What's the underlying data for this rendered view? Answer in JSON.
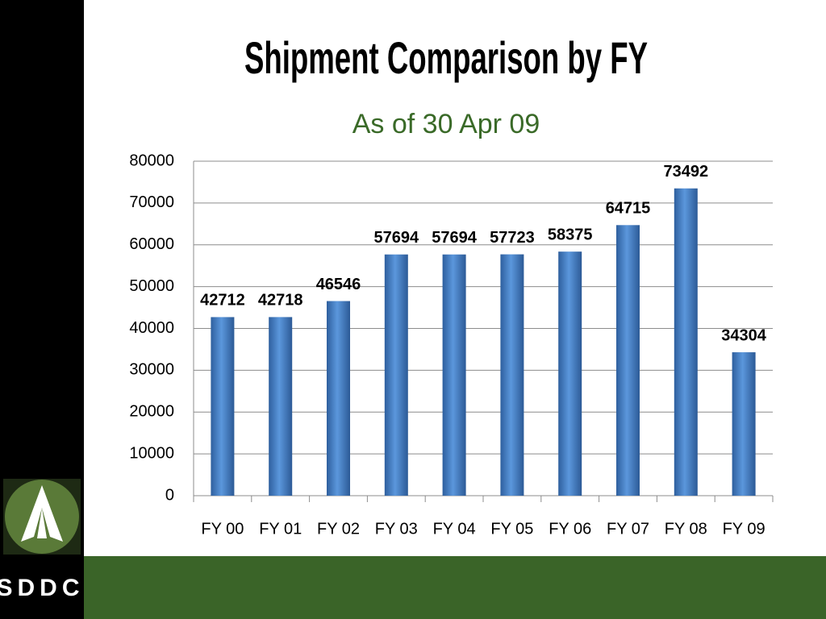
{
  "chart_data": {
    "type": "bar",
    "title": "Shipment Comparison by FY",
    "subtitle": "As of 30 Apr 09",
    "categories": [
      "FY 00",
      "FY 01",
      "FY 02",
      "FY 03",
      "FY 04",
      "FY 05",
      "FY 06",
      "FY 07",
      "FY 08",
      "FY 09"
    ],
    "values": [
      42712,
      42718,
      46546,
      57694,
      57694,
      57723,
      58375,
      64715,
      73492,
      34304
    ],
    "color": "#4a86d0",
    "ylim": [
      0,
      80000
    ],
    "yticks": [
      0,
      10000,
      20000,
      30000,
      40000,
      50000,
      60000,
      70000,
      80000
    ],
    "grid": true
  },
  "branding": {
    "logo_text": "SDDC"
  }
}
